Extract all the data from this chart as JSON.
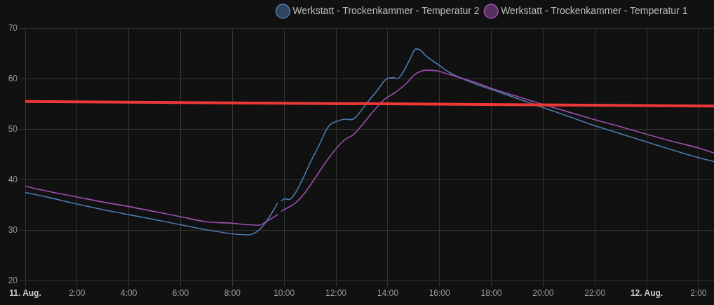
{
  "chart_data": {
    "type": "line",
    "xlim": [
      "--08-11T00:00",
      "--08-12T02:36"
    ],
    "xticks": [
      {
        "value": "--08-11T00:00",
        "label": "11. Aug."
      },
      {
        "value": "--08-11T02:00",
        "label": "2:00"
      },
      {
        "value": "--08-11T04:00",
        "label": "4:00"
      },
      {
        "value": "--08-11T06:00",
        "label": "6:00"
      },
      {
        "value": "--08-11T08:00",
        "label": "8:00"
      },
      {
        "value": "--08-11T10:00",
        "label": "10:00"
      },
      {
        "value": "--08-11T12:00",
        "label": "12:00"
      },
      {
        "value": "--08-11T14:00",
        "label": "14:00"
      },
      {
        "value": "--08-11T16:00",
        "label": "16:00"
      },
      {
        "value": "--08-11T18:00",
        "label": "18:00"
      },
      {
        "value": "--08-11T20:00",
        "label": "20:00"
      },
      {
        "value": "--08-11T22:00",
        "label": "22:00"
      },
      {
        "value": "--08-12T00:00",
        "label": "12. Aug."
      },
      {
        "value": "--08-12T02:00",
        "label": "2:00"
      }
    ],
    "ylim": [
      20,
      70
    ],
    "yticks": [
      20,
      30,
      40,
      50,
      60,
      70
    ],
    "grid": true,
    "legend": "top right",
    "marker": "none",
    "series": [
      {
        "name": "Werkstatt - Trockenkammer - Temperatur 2",
        "color": "#4a7aaa",
        "x": [
          "--08-11T00:00",
          "--08-11T01:00",
          "--08-11T02:00",
          "--08-11T03:00",
          "--08-11T04:00",
          "--08-11T05:00",
          "--08-11T06:00",
          "--08-11T07:00",
          "--08-11T08:00",
          "--08-11T08:37",
          "--08-11T09:01",
          "--08-11T09:20",
          "--08-11T09:45",
          "--08-11T09:48",
          "--08-11T09:53",
          "--08-11T10:01",
          "--08-11T10:12",
          "--08-11T10:28",
          "--08-11T10:42",
          "--08-11T11:01",
          "--08-11T11:20",
          "--08-11T11:43",
          "--08-11T12:03",
          "--08-11T12:22",
          "--08-11T12:36",
          "--08-11T12:47",
          "--08-11T13:08",
          "--08-11T13:35",
          "--08-11T14:00",
          "--08-11T14:14",
          "--08-11T14:22",
          "--08-11T14:35",
          "--08-11T14:52",
          "--08-11T15:05",
          "--08-11T15:13",
          "--08-11T15:29",
          "--08-11T15:52",
          "--08-11T16:24",
          "--08-11T16:56",
          "--08-11T17:29",
          "--08-11T18:00",
          "--08-11T19:00",
          "--08-11T20:00",
          "--08-11T21:00",
          "--08-11T22:00",
          "--08-11T23:00",
          "--08-12T00:00",
          "--08-12T01:00",
          "--08-12T02:00",
          "--08-12T02:36"
        ],
        "values": [
          37.5,
          36.4,
          35.2,
          34.1,
          33.1,
          32.1,
          31.1,
          30.1,
          29.3,
          29.1,
          30.0,
          31.9,
          35.4,
          null,
          35.9,
          36.2,
          36.1,
          37.7,
          40.0,
          43.5,
          46.7,
          50.6,
          51.6,
          52.0,
          51.9,
          52.5,
          54.8,
          57.6,
          60.1,
          60.2,
          60.0,
          61.2,
          64.0,
          65.9,
          65.8,
          64.5,
          63.1,
          61.2,
          59.9,
          58.8,
          57.9,
          56.1,
          54.3,
          52.5,
          50.7,
          49.1,
          47.5,
          45.9,
          44.4,
          43.6
        ]
      },
      {
        "name": "Werkstatt - Trockenkammer - Temperatur 1",
        "color": "#9c4fac",
        "x": [
          "--08-11T00:00",
          "--08-11T01:00",
          "--08-11T02:00",
          "--08-11T03:00",
          "--08-11T04:00",
          "--08-11T05:00",
          "--08-11T06:00",
          "--08-11T07:00",
          "--08-11T08:00",
          "--08-11T08:37",
          "--08-11T09:01",
          "--08-11T09:20",
          "--08-11T09:45",
          "--08-11T09:48",
          "--08-11T09:53",
          "--08-11T10:04",
          "--08-11T10:26",
          "--08-11T10:47",
          "--08-11T11:09",
          "--08-11T11:31",
          "--08-11T11:52",
          "--08-11T12:20",
          "--08-11T12:41",
          "--08-11T13:03",
          "--08-11T13:30",
          "--08-11T13:52",
          "--08-11T14:14",
          "--08-11T14:41",
          "--08-11T15:02",
          "--08-11T15:29",
          "--08-11T15:52",
          "--08-11T16:24",
          "--08-11T16:56",
          "--08-11T17:29",
          "--08-11T18:00",
          "--08-11T19:00",
          "--08-11T20:00",
          "--08-11T21:00",
          "--08-11T22:00",
          "--08-11T23:00",
          "--08-12T00:00",
          "--08-12T01:00",
          "--08-12T02:00",
          "--08-12T02:36"
        ],
        "values": [
          38.7,
          37.6,
          36.6,
          35.6,
          34.7,
          33.7,
          32.7,
          31.7,
          31.4,
          31.1,
          31.0,
          31.8,
          33.1,
          null,
          33.8,
          34.3,
          35.4,
          37.3,
          40.0,
          42.8,
          45.3,
          47.9,
          49.0,
          51.1,
          53.9,
          55.9,
          57.1,
          58.9,
          60.8,
          61.7,
          61.6,
          60.8,
          60.0,
          59.1,
          58.1,
          56.5,
          54.9,
          53.4,
          51.9,
          50.5,
          49.0,
          47.6,
          46.3,
          45.3
        ]
      },
      {
        "color": "#ee3838",
        "x": [
          "--08-11T00:00",
          "--08-12T02:36"
        ],
        "values": [
          55.5,
          54.6
        ]
      }
    ]
  }
}
